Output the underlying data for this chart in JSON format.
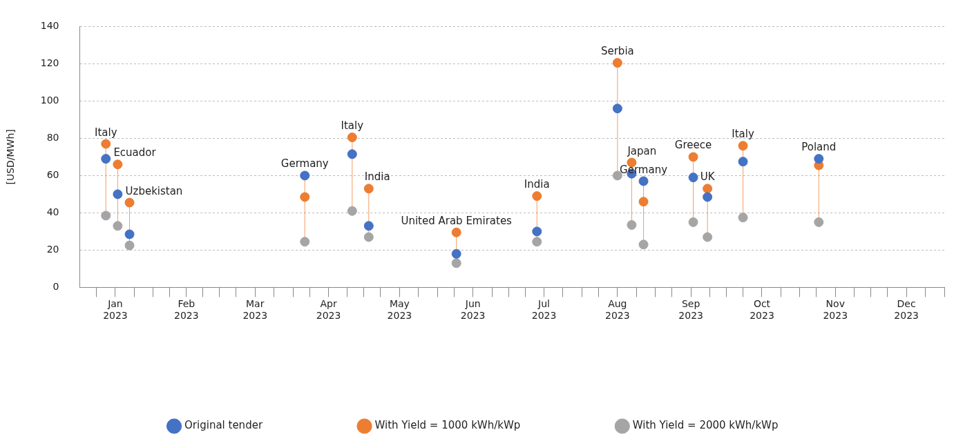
{
  "chart_data": {
    "type": "scatter",
    "ylabel": "[USD/MWh]",
    "x": [
      "2023-01-12",
      "2023-01-17",
      "2023-01-22",
      "2023-04-06",
      "2023-04-26",
      "2023-05-03",
      "2023-06-09",
      "2023-07-13",
      "2023-08-16",
      "2023-08-22",
      "2023-08-27",
      "2023-09-17",
      "2023-09-23",
      "2023-10-08",
      "2023-11-09"
    ],
    "series": [
      {
        "name": "Original tender",
        "color": "#4472c4",
        "values": [
          69,
          50,
          28.5,
          60,
          71.5,
          33,
          18,
          30,
          96,
          61,
          57,
          59,
          48.5,
          67.5,
          69
        ]
      },
      {
        "name": "With Yield = 1000 kWh/kWp",
        "color": "#ed7d31",
        "values": [
          77,
          66,
          45.5,
          48.5,
          80.5,
          53,
          29.5,
          49,
          120.5,
          67,
          46,
          70,
          53,
          76,
          65.5
        ]
      },
      {
        "name": "With Yield = 2000 kWh/kWp",
        "color": "#a5a5a5",
        "values": [
          38.5,
          33,
          22.5,
          24.5,
          41,
          27,
          13,
          24.5,
          60,
          33.5,
          23,
          35,
          27,
          37.5,
          35
        ]
      }
    ],
    "annotations": [
      {
        "text": "Italy",
        "x": "2023-01-12",
        "y": 77
      },
      {
        "text": "Ecuador",
        "x": "2023-01-17",
        "y": 66
      },
      {
        "text": "Uzbekistan",
        "x": "2023-01-22",
        "y": 45.5
      },
      {
        "text": "Germany",
        "x": "2023-04-06",
        "y": 60
      },
      {
        "text": "Italy",
        "x": "2023-04-26",
        "y": 80.5
      },
      {
        "text": "India",
        "x": "2023-05-03",
        "y": 53
      },
      {
        "text": "United Arab Emirates",
        "x": "2023-06-09",
        "y": 29.5
      },
      {
        "text": "India",
        "x": "2023-07-13",
        "y": 49
      },
      {
        "text": "Serbia",
        "x": "2023-08-16",
        "y": 120.5
      },
      {
        "text": "Japan",
        "x": "2023-08-22",
        "y": 67
      },
      {
        "text": "Germany",
        "x": "2023-08-27",
        "y": 57
      },
      {
        "text": "Greece",
        "x": "2023-09-17",
        "y": 70
      },
      {
        "text": "UK",
        "x": "2023-09-23",
        "y": 53
      },
      {
        "text": "Italy",
        "x": "2023-10-08",
        "y": 76
      },
      {
        "text": "Poland",
        "x": "2023-11-09",
        "y": 69
      }
    ],
    "xlim": [
      "2023-01-01",
      "2024-01-01"
    ],
    "xticks": [
      {
        "value": "2023-01-08",
        "label": null
      },
      {
        "value": "2023-01-16",
        "label": "Jan 2023"
      },
      {
        "value": "2023-01-24",
        "label": null
      },
      {
        "value": "2023-02-01",
        "label": null
      },
      {
        "value": "2023-02-08",
        "label": null
      },
      {
        "value": "2023-02-15",
        "label": "Feb 2023"
      },
      {
        "value": "2023-02-22",
        "label": null
      },
      {
        "value": "2023-03-01",
        "label": null
      },
      {
        "value": "2023-03-08",
        "label": null
      },
      {
        "value": "2023-03-16",
        "label": "Mar 2023"
      },
      {
        "value": "2023-03-24",
        "label": null
      },
      {
        "value": "2023-04-01",
        "label": null
      },
      {
        "value": "2023-04-08",
        "label": null
      },
      {
        "value": "2023-04-16",
        "label": "Apr 2023"
      },
      {
        "value": "2023-04-24",
        "label": null
      },
      {
        "value": "2023-05-01",
        "label": null
      },
      {
        "value": "2023-05-08",
        "label": null
      },
      {
        "value": "2023-05-16",
        "label": "May 2023"
      },
      {
        "value": "2023-05-24",
        "label": null
      },
      {
        "value": "2023-06-01",
        "label": null
      },
      {
        "value": "2023-06-08",
        "label": null
      },
      {
        "value": "2023-06-16",
        "label": "Jun 2023"
      },
      {
        "value": "2023-06-24",
        "label": null
      },
      {
        "value": "2023-07-01",
        "label": null
      },
      {
        "value": "2023-07-08",
        "label": null
      },
      {
        "value": "2023-07-16",
        "label": "Jul 2023"
      },
      {
        "value": "2023-07-24",
        "label": null
      },
      {
        "value": "2023-08-01",
        "label": null
      },
      {
        "value": "2023-08-08",
        "label": null
      },
      {
        "value": "2023-08-16",
        "label": "Aug 2023"
      },
      {
        "value": "2023-08-24",
        "label": null
      },
      {
        "value": "2023-09-01",
        "label": null
      },
      {
        "value": "2023-09-08",
        "label": null
      },
      {
        "value": "2023-09-16",
        "label": "Sep 2023"
      },
      {
        "value": "2023-09-24",
        "label": null
      },
      {
        "value": "2023-10-01",
        "label": null
      },
      {
        "value": "2023-10-08",
        "label": null
      },
      {
        "value": "2023-10-16",
        "label": "Oct 2023"
      },
      {
        "value": "2023-10-24",
        "label": null
      },
      {
        "value": "2023-11-01",
        "label": null
      },
      {
        "value": "2023-11-08",
        "label": null
      },
      {
        "value": "2023-11-16",
        "label": "Nov 2023"
      },
      {
        "value": "2023-11-24",
        "label": null
      },
      {
        "value": "2023-12-01",
        "label": null
      },
      {
        "value": "2023-12-08",
        "label": null
      },
      {
        "value": "2023-12-16",
        "label": "Dec 2023"
      },
      {
        "value": "2023-12-24",
        "label": null
      },
      {
        "value": "2024-01-01",
        "label": null
      }
    ],
    "ylim": [
      0,
      140
    ],
    "yticks": [
      0,
      20,
      40,
      60,
      80,
      100,
      120,
      140
    ],
    "grid": "y",
    "legend": "bottom",
    "marker": "circle"
  }
}
